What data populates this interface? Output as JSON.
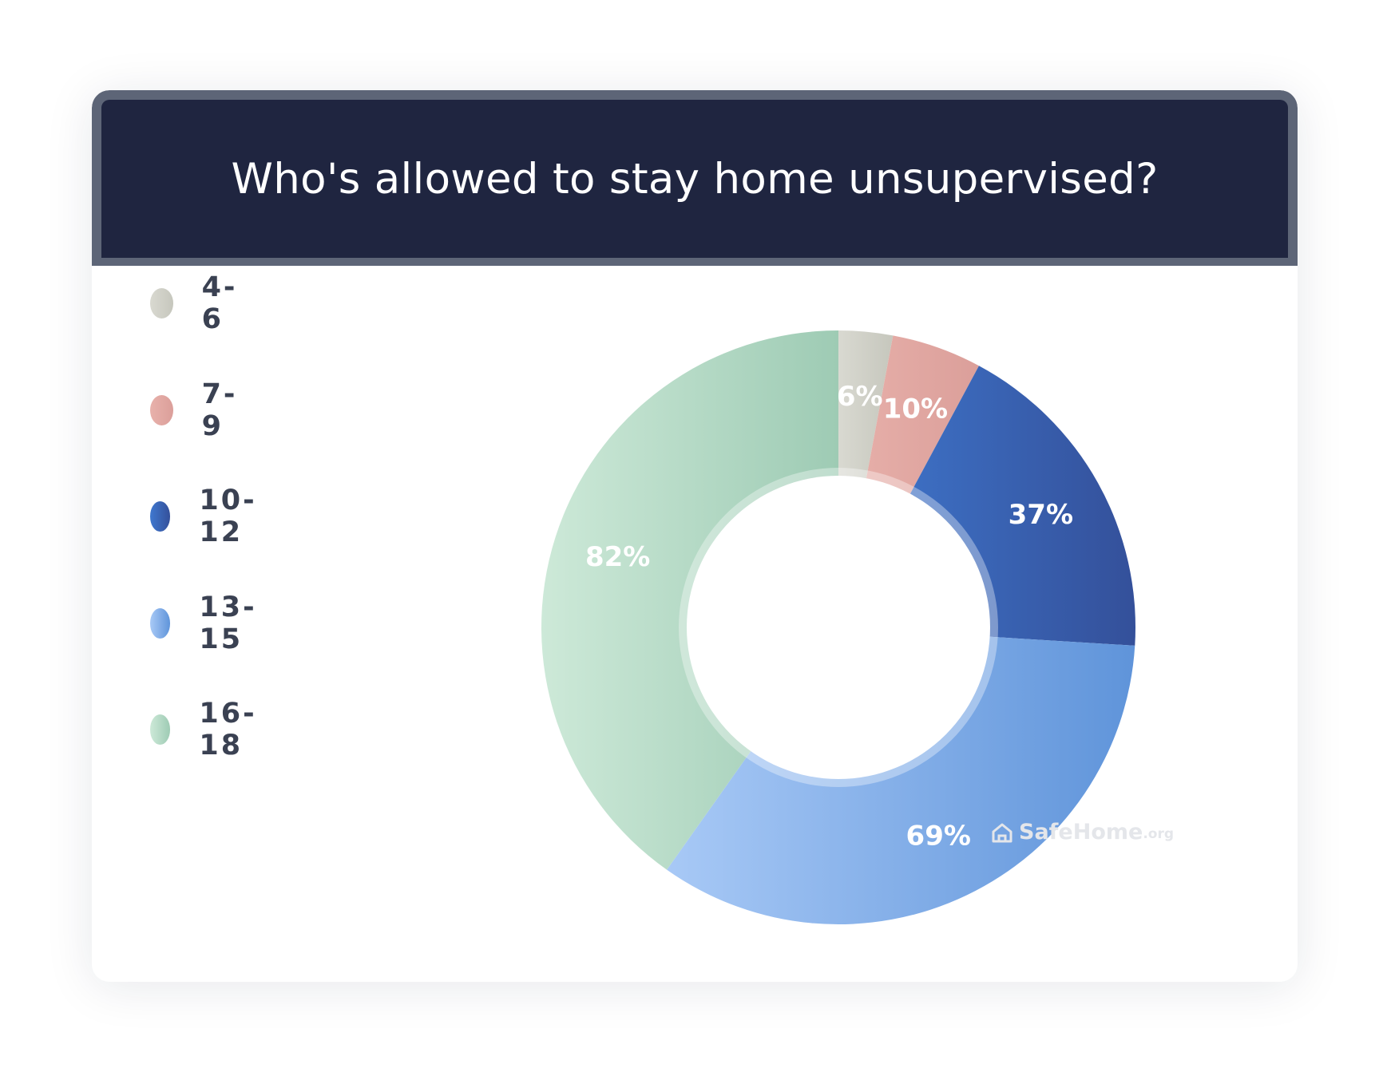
{
  "chart_data": {
    "type": "pie",
    "title": "Who's allowed to stay home unsupervised?",
    "slices": [
      {
        "label": "4-6",
        "value": 6,
        "display": "6%",
        "colors": [
          "#d9d9d1",
          "#c6c7bd"
        ]
      },
      {
        "label": "7-9",
        "value": 10,
        "display": "10%",
        "colors": [
          "#e8b1ab",
          "#db9f9a"
        ]
      },
      {
        "label": "10-12",
        "value": 37,
        "display": "37%",
        "colors": [
          "#3f78cf",
          "#34509a"
        ]
      },
      {
        "label": "13-15",
        "value": 69,
        "display": "69%",
        "colors": [
          "#a8c9f6",
          "#5f94da"
        ]
      },
      {
        "label": "16-18",
        "value": 82,
        "display": "82%",
        "colors": [
          "#cde9d8",
          "#9ecbb4"
        ]
      }
    ],
    "hole": "donut"
  },
  "watermark": {
    "name": "SafeHome",
    "suffix": ".org"
  }
}
